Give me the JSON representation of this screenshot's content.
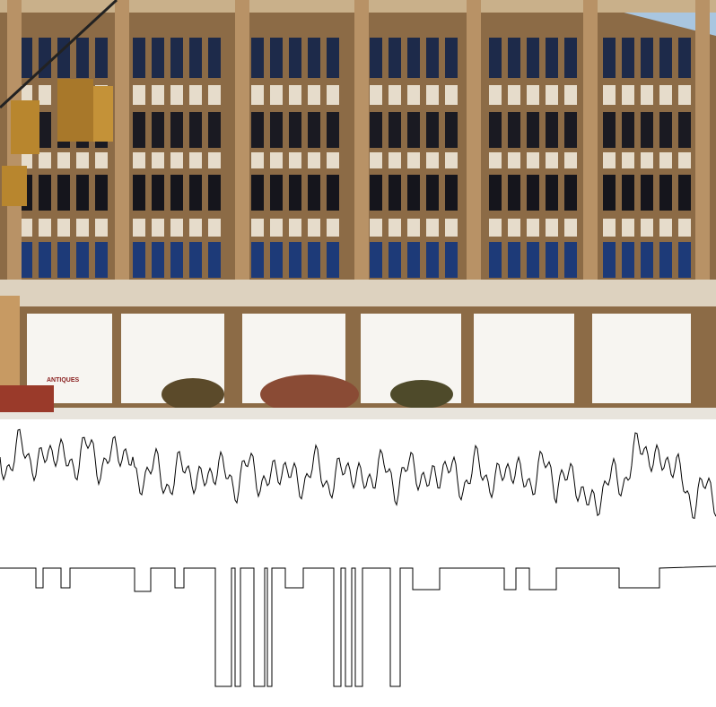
{
  "photo": {
    "sign": "ANTIQUES"
  }
}
